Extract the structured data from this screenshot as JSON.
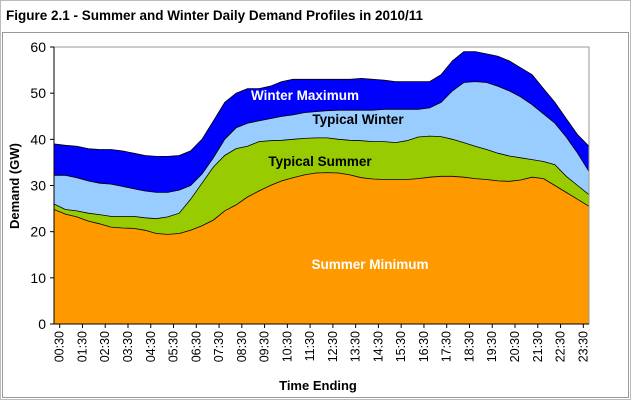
{
  "chart_data": {
    "type": "area",
    "title": "Figure 2.1 - Summer and Winter Daily Demand Profiles in 2010/11",
    "xlabel": "Time Ending",
    "ylabel": "Demand (GW)",
    "ylim": [
      0,
      60
    ],
    "yticks": [
      0,
      10,
      20,
      30,
      40,
      50,
      60
    ],
    "grid": false,
    "legend": "none (series labelled inside the areas)",
    "categories": [
      "00:30",
      "01:00",
      "01:30",
      "02:00",
      "02:30",
      "03:00",
      "03:30",
      "04:00",
      "04:30",
      "05:00",
      "05:30",
      "06:00",
      "06:30",
      "07:00",
      "07:30",
      "08:00",
      "08:30",
      "09:00",
      "09:30",
      "10:00",
      "10:30",
      "11:00",
      "11:30",
      "12:00",
      "12:30",
      "13:00",
      "13:30",
      "14:00",
      "14:30",
      "15:00",
      "15:30",
      "16:00",
      "16:30",
      "17:00",
      "17:30",
      "18:00",
      "18:30",
      "19:00",
      "19:30",
      "20:00",
      "20:30",
      "21:00",
      "21:30",
      "22:00",
      "22:30",
      "23:00",
      "23:30",
      "24:00"
    ],
    "tick_labels": [
      "00:30",
      "01:30",
      "02:30",
      "03:30",
      "04:30",
      "05:30",
      "06:30",
      "07:30",
      "08:30",
      "09:30",
      "10:30",
      "11:30",
      "12:30",
      "13:30",
      "14:30",
      "15:30",
      "16:30",
      "17:30",
      "18:30",
      "19:30",
      "20:30",
      "21:30",
      "22:30",
      "23:30"
    ],
    "series": [
      {
        "name": "Winter Maximum",
        "color": "#0000ff",
        "label_color": "#ffffff",
        "values": [
          39,
          38.7,
          38.5,
          38,
          37.8,
          37.8,
          37.5,
          37,
          36.5,
          36.3,
          36.3,
          36.5,
          37.5,
          40,
          44,
          48,
          50,
          51,
          51,
          51.5,
          52.5,
          53,
          53,
          53,
          53,
          53,
          53,
          53.2,
          53,
          52.8,
          52.5,
          52.5,
          52.5,
          52.5,
          54,
          57,
          59,
          59,
          58.5,
          58,
          57,
          55.5,
          54,
          51,
          48,
          44.5,
          41,
          38.5
        ]
      },
      {
        "name": "Typical Winter",
        "color": "#99ccff",
        "label_color": "#000000",
        "values": [
          32.2,
          32.2,
          31.7,
          31,
          30.5,
          30.3,
          29.8,
          29.3,
          28.8,
          28.5,
          28.5,
          29,
          30,
          32.5,
          36,
          40,
          42.5,
          43.5,
          44,
          44.5,
          45,
          45.3,
          45.8,
          46,
          46.2,
          46.3,
          46.3,
          46.3,
          46.3,
          46.5,
          46.5,
          46.5,
          46.5,
          46.8,
          48,
          50.5,
          52.3,
          52.5,
          52.3,
          51.5,
          50.5,
          49.2,
          47.5,
          45.5,
          43.5,
          40.5,
          37,
          33
        ]
      },
      {
        "name": "Typical Summer",
        "color": "#99cc00",
        "label_color": "#000000",
        "values": [
          26,
          24.8,
          24.5,
          24,
          23.7,
          23.3,
          23.3,
          23.3,
          23,
          22.8,
          23.2,
          24,
          27,
          30.5,
          34,
          36.5,
          38,
          38.5,
          39.5,
          39.7,
          39.8,
          40,
          40.2,
          40.3,
          40.3,
          40,
          39.8,
          39.7,
          39.5,
          39.5,
          39.3,
          39.7,
          40.5,
          40.7,
          40.6,
          40,
          39.3,
          38.5,
          37.8,
          37,
          36.4,
          36,
          35.6,
          35.2,
          34.5,
          32,
          30,
          28
        ]
      },
      {
        "name": "Summer Minimum",
        "color": "#ff9900",
        "label_color": "#ffffff",
        "values": [
          24.8,
          23.8,
          23.2,
          22.3,
          21.7,
          21,
          20.8,
          20.7,
          20.3,
          19.6,
          19.4,
          19.6,
          20.3,
          21.3,
          22.5,
          24.5,
          25.8,
          27.5,
          28.8,
          30,
          31,
          31.7,
          32.3,
          32.7,
          32.8,
          32.7,
          32.3,
          31.7,
          31.4,
          31.3,
          31.3,
          31.3,
          31.5,
          31.8,
          32,
          32,
          31.8,
          31.5,
          31.3,
          31,
          30.9,
          31.2,
          31.8,
          31.5,
          30,
          28.5,
          27,
          25.5
        ]
      }
    ]
  }
}
